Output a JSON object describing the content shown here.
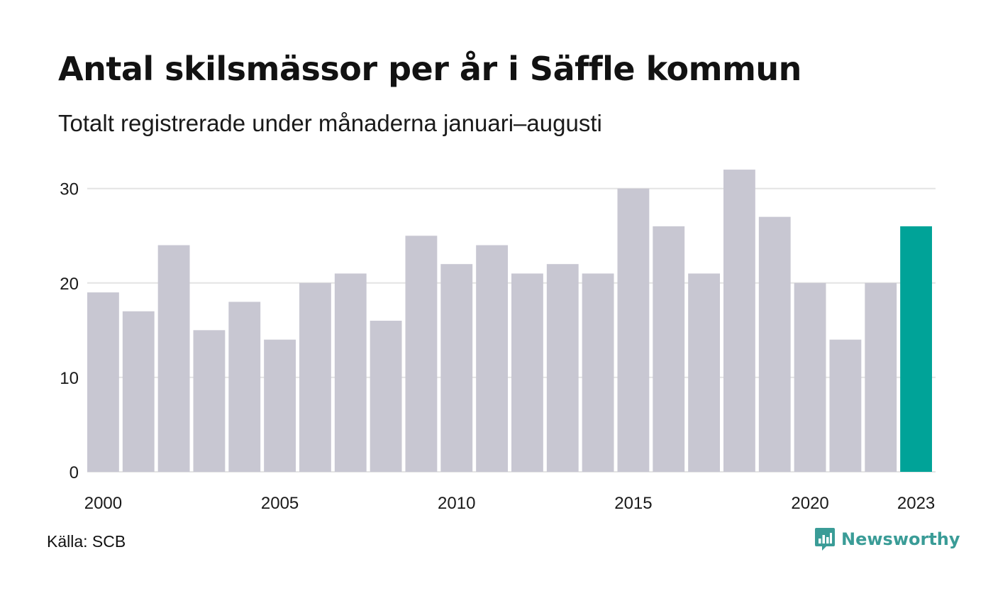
{
  "title": "Antal skilsmässor per år i Säffle kommun",
  "subtitle": "Totalt registrerade under månaderna januari–augusti",
  "source": "Källa: SCB",
  "brand": {
    "name": "Newsworthy",
    "icon": "newsworthy-logo-icon",
    "color": "#3a9c97"
  },
  "chart_data": {
    "type": "bar",
    "title": "Antal skilsmässor per år i Säffle kommun",
    "subtitle": "Totalt registrerade under månaderna januari–augusti",
    "categories": [
      "2000",
      "2001",
      "2002",
      "2003",
      "2004",
      "2005",
      "2006",
      "2007",
      "2008",
      "2009",
      "2010",
      "2011",
      "2012",
      "2013",
      "2014",
      "2015",
      "2016",
      "2017",
      "2018",
      "2019",
      "2020",
      "2021",
      "2022",
      "2023"
    ],
    "values": [
      19,
      17,
      24,
      15,
      18,
      14,
      20,
      21,
      16,
      25,
      22,
      24,
      21,
      22,
      21,
      30,
      26,
      21,
      32,
      27,
      20,
      14,
      20,
      26
    ],
    "x_tick_labels": [
      "2000",
      "2005",
      "2010",
      "2015",
      "2020",
      "2023"
    ],
    "y_ticks": [
      0,
      10,
      20,
      30
    ],
    "ylim": [
      0,
      32
    ],
    "grid": true,
    "colors": {
      "bar": "#c8c7d2",
      "highlight": "#00a398",
      "grid": "#e4e4e4"
    },
    "highlight_category": "2023"
  }
}
